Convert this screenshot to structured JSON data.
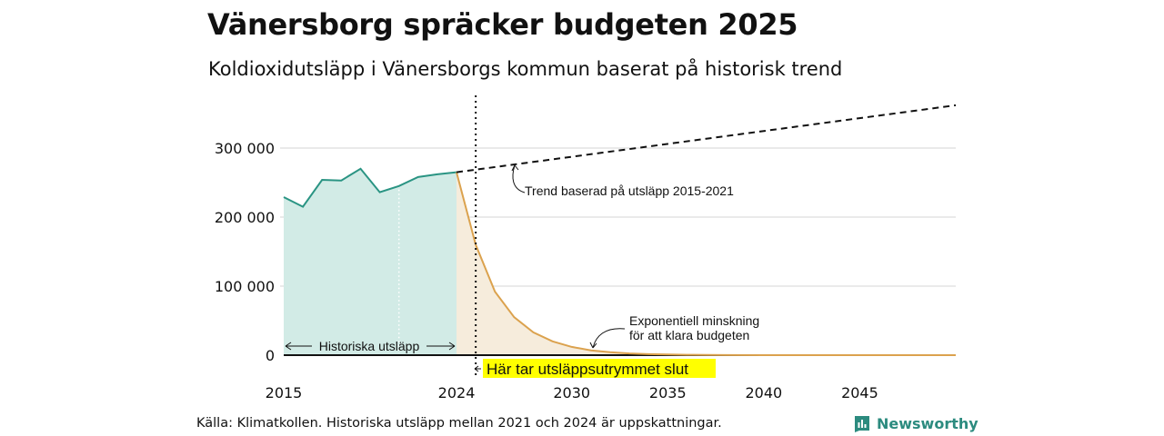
{
  "title": "Vänersborg spräcker budgeten 2025",
  "subtitle": "Koldioxidutsläpp i Vänersborgs kommun baserat på historisk trend",
  "source": "Källa: Klimatkollen. Historiska utsläpp mellan 2021 och 2024 är uppskattningar.",
  "brand": "Newsworthy",
  "colors": {
    "historical_line": "#2a9483",
    "historical_fill": "#d2ebe6",
    "reduction_line": "#dba24e",
    "reduction_fill": "#f6ecdc",
    "highlight": "#ffff00",
    "grid": "#dddddd"
  },
  "chart_data": {
    "type": "line",
    "xlim": [
      2015,
      2050
    ],
    "ylim": [
      0,
      300000
    ],
    "x_ticks": [
      2015,
      2024,
      2030,
      2035,
      2040,
      2045
    ],
    "y_ticks": [
      0,
      100000,
      200000,
      300000
    ],
    "y_tick_labels": [
      "0",
      "100 000",
      "200 000",
      "300 000"
    ],
    "grid": "horizontal",
    "series": [
      {
        "key": "historical",
        "x": [
          2015,
          2016,
          2017,
          2018,
          2019,
          2020,
          2021,
          2022,
          2023,
          2024
        ],
        "y": [
          229000,
          215000,
          254000,
          253000,
          270000,
          236000,
          245000,
          258000,
          262000,
          265000
        ]
      },
      {
        "key": "trend",
        "x": [
          2024,
          2050
        ],
        "y": [
          265000,
          362000
        ]
      },
      {
        "key": "reduction",
        "x": [
          2024,
          2025,
          2026,
          2027,
          2028,
          2029,
          2030,
          2031,
          2032,
          2033,
          2034,
          2035,
          2036,
          2037,
          2038,
          2040,
          2045,
          2050
        ],
        "y": [
          265000,
          160000,
          92000,
          55000,
          33000,
          20000,
          12000,
          7000,
          4200,
          2500,
          1500,
          900,
          500,
          300,
          150,
          50,
          0,
          0
        ]
      }
    ],
    "vertical_marker_x": 2025,
    "annotations": {
      "trend_label": "Trend baserad på utsläpp 2015-2021",
      "reduction_label_line1": "Exponentiell minskning",
      "reduction_label_line2": "för att klara budgeten",
      "historical_label": "Historiska utsläpp",
      "budget_end_label": "Här tar utsläppsutrymmet slut"
    }
  }
}
